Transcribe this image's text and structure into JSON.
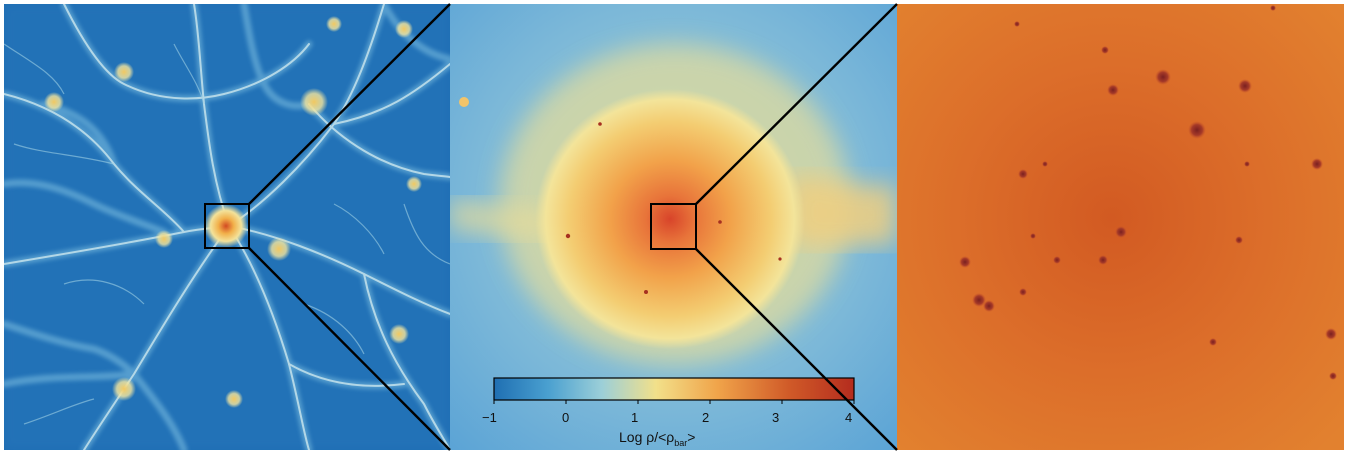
{
  "panels": [
    {
      "name": "large-scale-web",
      "description_color": "#1f6fb2"
    },
    {
      "name": "halo-zoom",
      "description_color": "#f0c060"
    },
    {
      "name": "core-zoom",
      "description_color": "#d46a22"
    }
  ],
  "colorbar": {
    "ticks": [
      "−1",
      "0",
      "1",
      "2",
      "3",
      "4"
    ],
    "label_main": "Log ρ/<ρ",
    "label_sub": "bar",
    "label_end": ">",
    "range": [
      -1,
      4
    ],
    "colors": [
      "#1f6fb2",
      "#4aa0d0",
      "#9ccfd8",
      "#f2e08a",
      "#f0a44a",
      "#d05a28",
      "#b42c1e"
    ]
  }
}
